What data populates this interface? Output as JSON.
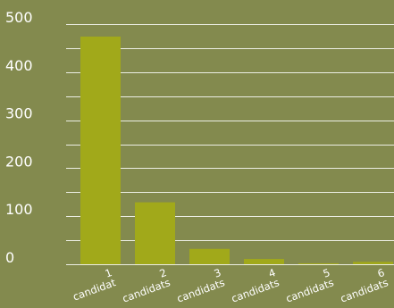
{
  "chart_data": {
    "type": "bar",
    "categories": [
      "1 candidat",
      "2 candidats",
      "3 candidats",
      "4 candidats",
      "5 candidats",
      "6 candidats"
    ],
    "category_lines": [
      [
        "1",
        "candidat"
      ],
      [
        "2",
        "candidats"
      ],
      [
        "3",
        "candidats"
      ],
      [
        "4",
        "candidats"
      ],
      [
        "5",
        "candidats"
      ],
      [
        "6",
        "candidats"
      ]
    ],
    "values": [
      474,
      129,
      32,
      11,
      2,
      5
    ],
    "ylim": [
      0,
      500
    ],
    "yticks": [
      "0",
      "100",
      "200",
      "300",
      "400",
      "500"
    ],
    "grid": true,
    "legend": "none"
  },
  "colors": {
    "background": "#838a4e",
    "bar": "#a1a91a",
    "grid": "#ffffff",
    "text": "#ffffff"
  }
}
